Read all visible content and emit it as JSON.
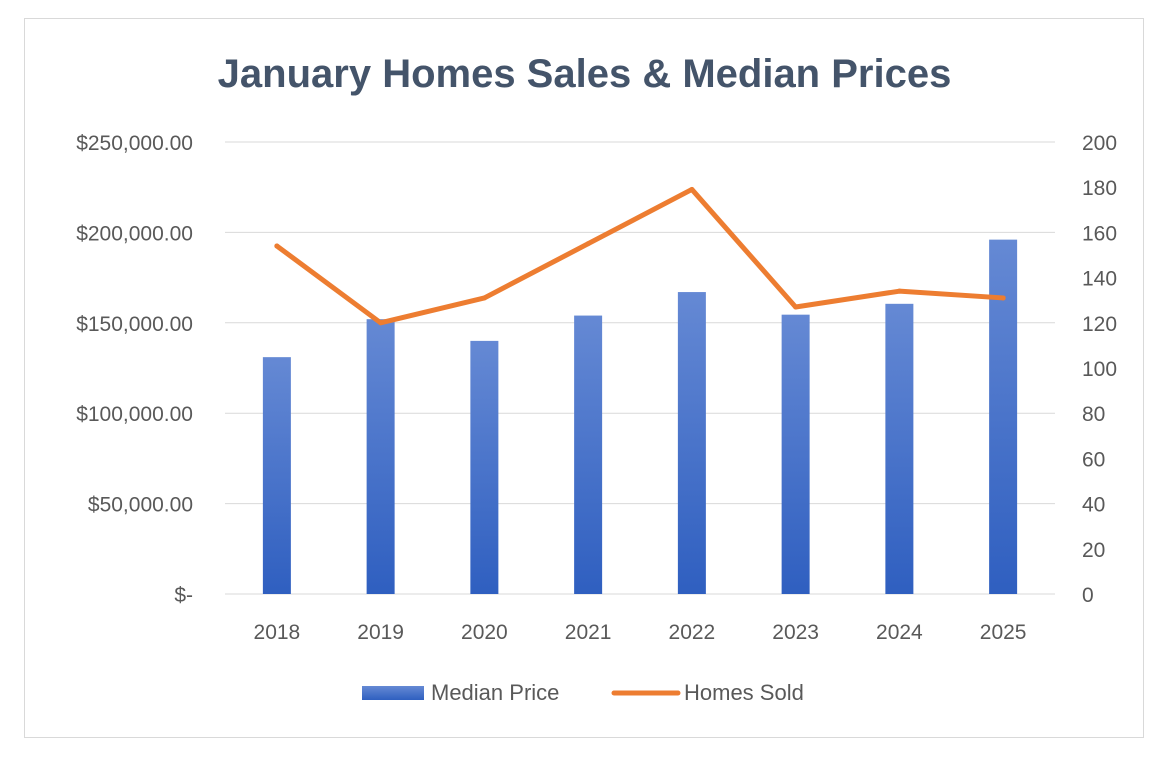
{
  "chart_data": {
    "type": "bar+line",
    "title": "January Homes Sales & Median Prices",
    "categories": [
      "2018",
      "2019",
      "2020",
      "2021",
      "2022",
      "2023",
      "2024",
      "2025"
    ],
    "series": [
      {
        "name": "Median Price",
        "type": "bar",
        "axis": "left",
        "values": [
          131000,
          152000,
          140000,
          154000,
          167000,
          154500,
          160500,
          196000
        ],
        "color": "#4472c4"
      },
      {
        "name": "Homes Sold",
        "type": "line",
        "axis": "right",
        "values": [
          154,
          120,
          131,
          155,
          179,
          127,
          134,
          131
        ],
        "color": "#ed7d31"
      }
    ],
    "y_left": {
      "range": [
        0,
        250000
      ],
      "ticks": [
        0,
        50000,
        100000,
        150000,
        200000,
        250000
      ],
      "tick_labels": [
        "$-",
        "$50,000.00",
        "$100,000.00",
        "$150,000.00",
        "$200,000.00",
        "$250,000.00"
      ]
    },
    "y_right": {
      "range": [
        0,
        200
      ],
      "ticks": [
        0,
        20,
        40,
        60,
        80,
        100,
        120,
        140,
        160,
        180,
        200
      ],
      "tick_labels": [
        "0",
        "20",
        "40",
        "60",
        "80",
        "100",
        "120",
        "140",
        "160",
        "180",
        "200"
      ]
    },
    "grid": true,
    "legend_position": "bottom"
  }
}
